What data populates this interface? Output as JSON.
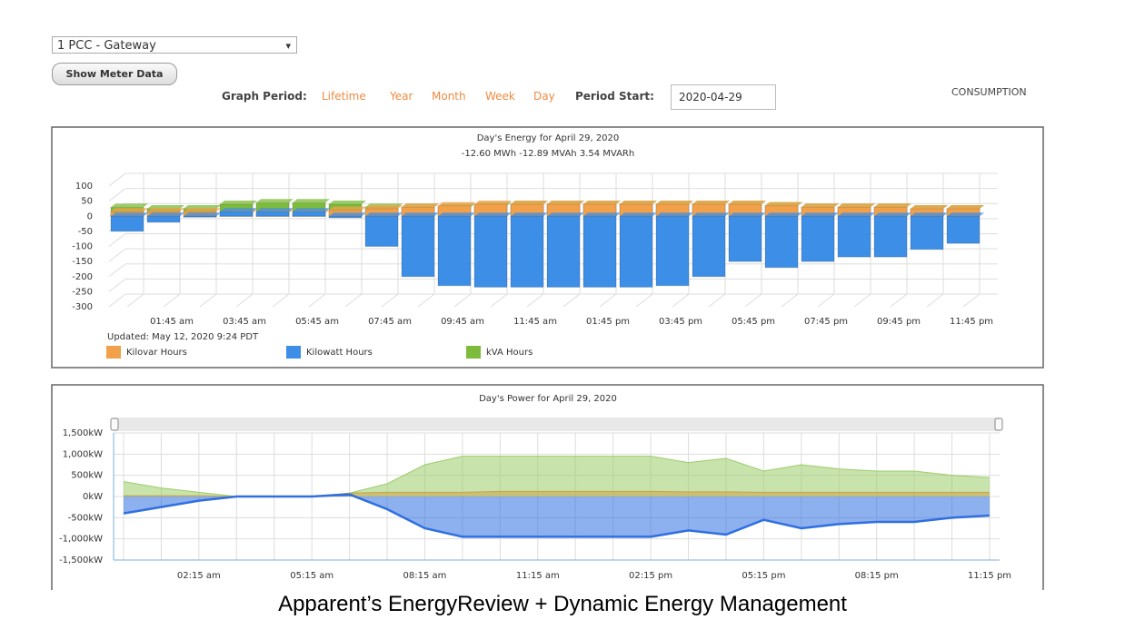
{
  "ui": {
    "meter_select": "1 PCC - Gateway",
    "show_button": "Show Meter Data",
    "graph_period_label": "Graph Period:",
    "periods": [
      "Lifetime",
      "Year",
      "Month",
      "Week",
      "Day"
    ],
    "period_start_label": "Period Start:",
    "period_start": "2020-04-29",
    "mode": "CONSUMPTION"
  },
  "chart_data": [
    {
      "type": "bar",
      "title": "Day's Energy for April 29, 2020",
      "subtitle": "-12.60 MWh -12.89 MVAh 3.54 MVARh",
      "note": "Updated: May 12, 2020 9:24 PDT",
      "categories": [
        null,
        "01:45 am",
        null,
        "03:45 am",
        null,
        "05:45 am",
        null,
        "07:45 am",
        null,
        "09:45 am",
        null,
        "11:45 am",
        null,
        "01:45 pm",
        null,
        "03:45 pm",
        null,
        "05:45 pm",
        null,
        "07:45 pm",
        null,
        "09:45 pm",
        null,
        "11:45 pm"
      ],
      "series": [
        {
          "name": "Kilovar Hours",
          "color": "#f2a04a",
          "values": [
            15,
            15,
            15,
            10,
            10,
            10,
            20,
            25,
            30,
            35,
            40,
            40,
            40,
            40,
            40,
            40,
            40,
            40,
            35,
            30,
            30,
            30,
            25,
            25
          ]
        },
        {
          "name": "Kilowatt Hours",
          "color": "#3d8ee6",
          "values": [
            -50,
            -20,
            0,
            15,
            15,
            15,
            -5,
            -100,
            -200,
            -230,
            -235,
            -235,
            -235,
            -235,
            -235,
            -230,
            -200,
            -150,
            -170,
            -150,
            -135,
            -135,
            -110,
            -90
          ]
        },
        {
          "name": "kVA Hours",
          "color": "#7dbb3c",
          "values": [
            30,
            25,
            25,
            40,
            45,
            45,
            40,
            30,
            30,
            30,
            35,
            40,
            40,
            40,
            40,
            40,
            40,
            40,
            35,
            30,
            30,
            30,
            25,
            25
          ]
        }
      ],
      "ylim": [
        -300,
        100
      ],
      "yticks": [
        -300,
        -250,
        -200,
        -150,
        -100,
        -50,
        0,
        50,
        100
      ],
      "grid": true,
      "legend": "bottom-left"
    },
    {
      "type": "area",
      "title": "Day's Power for April 29, 2020",
      "categories": [
        null,
        null,
        "02:15 am",
        null,
        null,
        "05:15 am",
        null,
        null,
        "08:15 am",
        null,
        null,
        "11:15 am",
        null,
        null,
        "02:15 pm",
        null,
        null,
        "05:15 pm",
        null,
        null,
        "08:15 pm",
        null,
        null,
        "11:15 pm"
      ],
      "series": [
        {
          "color": "#9ccc6a",
          "values": [
            350,
            200,
            100,
            0,
            0,
            0,
            80,
            300,
            750,
            950,
            950,
            950,
            950,
            950,
            950,
            800,
            900,
            600,
            750,
            650,
            600,
            600,
            500,
            450
          ]
        },
        {
          "color": "#c9a448",
          "values": [
            20,
            20,
            20,
            0,
            0,
            0,
            80,
            100,
            100,
            100,
            120,
            120,
            120,
            120,
            120,
            110,
            110,
            100,
            100,
            100,
            100,
            100,
            100,
            100
          ]
        },
        {
          "color": "#2f6fe0",
          "values": [
            -400,
            -250,
            -100,
            0,
            0,
            0,
            50,
            -300,
            -750,
            -950,
            -950,
            -950,
            -950,
            -950,
            -950,
            -800,
            -900,
            -550,
            -750,
            -650,
            -600,
            -600,
            -500,
            -450
          ]
        }
      ],
      "ylim": [
        -1500,
        1500
      ],
      "yticks": [
        {
          "value": -1500,
          "label": "-1,500kW"
        },
        {
          "value": -1000,
          "label": "-1,000kW"
        },
        {
          "value": -500,
          "label": "-500kW"
        },
        {
          "value": 0,
          "label": "0kW"
        },
        {
          "value": 500,
          "label": "500kW"
        },
        {
          "value": 1000,
          "label": "1,000kW"
        },
        {
          "value": 1500,
          "label": "1,500kW"
        }
      ],
      "grid": true
    }
  ],
  "caption": "Apparent’s EnergyReview + Dynamic Energy Management"
}
